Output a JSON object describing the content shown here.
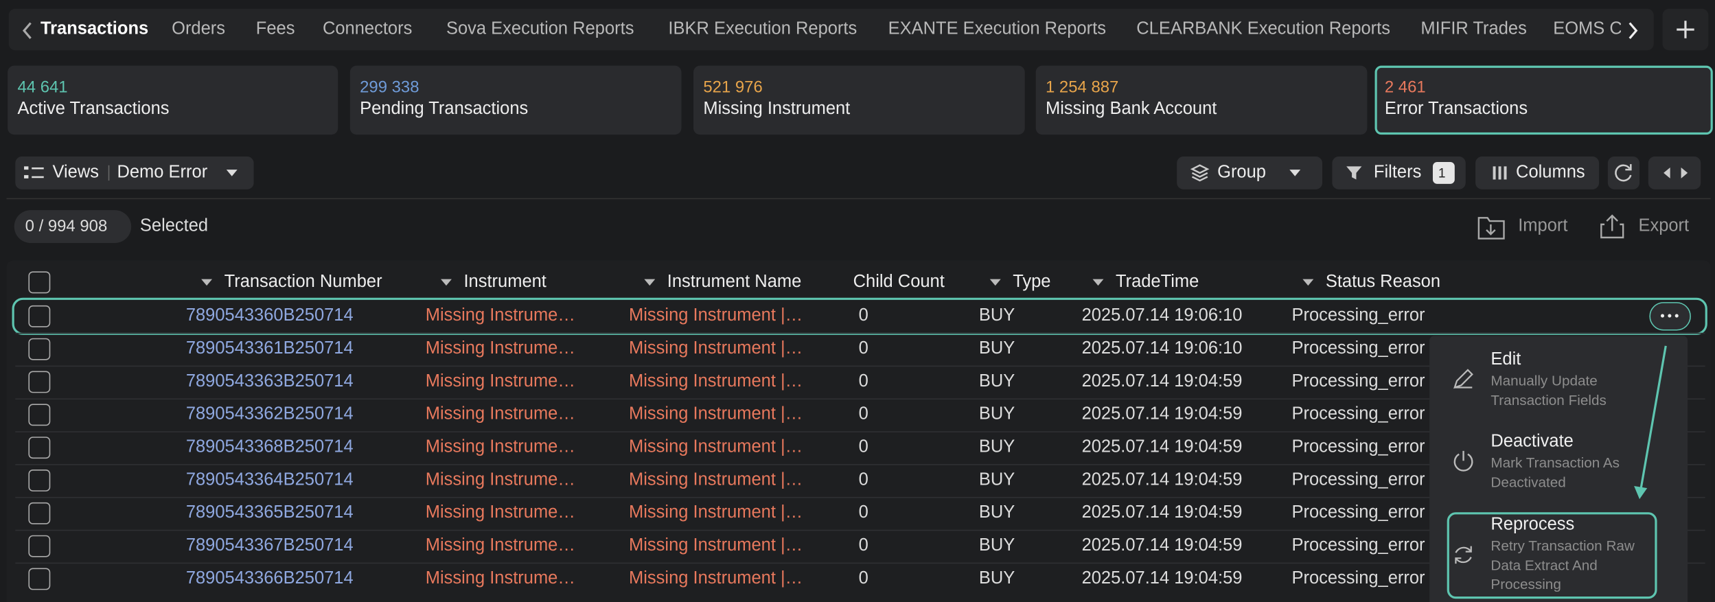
{
  "tabs": [
    "Transactions",
    "Orders",
    "Fees",
    "Connectors",
    "Sova Execution Reports",
    "IBKR Execution Reports",
    "EXANTE Execution Reports",
    "CLEARBANK Execution Reports",
    "MIFIR Trades",
    "EOMS C"
  ],
  "kpis": [
    {
      "value": "44 641",
      "label": "Active Transactions"
    },
    {
      "value": "299 338",
      "label": "Pending Transactions"
    },
    {
      "value": "521 976",
      "label": "Missing Instrument"
    },
    {
      "value": "1 254 887",
      "label": "Missing Bank Account"
    },
    {
      "value": "2 461",
      "label": "Error Transactions"
    }
  ],
  "toolbar": {
    "views": "Views",
    "view_name": "Demo Error",
    "group": "Group",
    "filters": "Filters",
    "filter_count": "1",
    "columns": "Columns"
  },
  "selection": {
    "count": "0 / 994 908",
    "label": "Selected",
    "import": "Import",
    "export": "Export"
  },
  "table": {
    "columns": [
      "Transaction Number",
      "Instrument",
      "Instrument Name",
      "Child Count",
      "Type",
      "TradeTime",
      "Status Reason"
    ],
    "rows": [
      [
        "7890543360B250714",
        "Missing Instrume…",
        "Missing Instrument |…",
        "0",
        "BUY",
        "2025.07.14 19:06:10",
        "Processing_error"
      ],
      [
        "7890543361B250714",
        "Missing Instrume…",
        "Missing Instrument |…",
        "0",
        "BUY",
        "2025.07.14 19:06:10",
        "Processing_error"
      ],
      [
        "7890543363B250714",
        "Missing Instrume…",
        "Missing Instrument |…",
        "0",
        "BUY",
        "2025.07.14 19:04:59",
        "Processing_error"
      ],
      [
        "7890543362B250714",
        "Missing Instrume…",
        "Missing Instrument |…",
        "0",
        "BUY",
        "2025.07.14 19:04:59",
        "Processing_error"
      ],
      [
        "7890543368B250714",
        "Missing Instrume…",
        "Missing Instrument |…",
        "0",
        "BUY",
        "2025.07.14 19:04:59",
        "Processing_error"
      ],
      [
        "7890543364B250714",
        "Missing Instrume…",
        "Missing Instrument |…",
        "0",
        "BUY",
        "2025.07.14 19:04:59",
        "Processing_error"
      ],
      [
        "7890543365B250714",
        "Missing Instrume…",
        "Missing Instrument |…",
        "0",
        "BUY",
        "2025.07.14 19:04:59",
        "Processing_error"
      ],
      [
        "7890543367B250714",
        "Missing Instrume…",
        "Missing Instrument |…",
        "0",
        "BUY",
        "2025.07.14 19:04:59",
        "Processing_error"
      ],
      [
        "7890543366B250714",
        "Missing Instrume…",
        "Missing Instrument |…",
        "0",
        "BUY",
        "2025.07.14 19:04:59",
        "Processing_error"
      ]
    ]
  },
  "menu": [
    {
      "title": "Edit",
      "description": "Manually Update Transaction Fields"
    },
    {
      "title": "Deactivate",
      "description": "Mark Transaction As Deactivated"
    },
    {
      "title": "Reprocess",
      "description": "Retry Transaction Raw Data Extract And Processing"
    }
  ]
}
